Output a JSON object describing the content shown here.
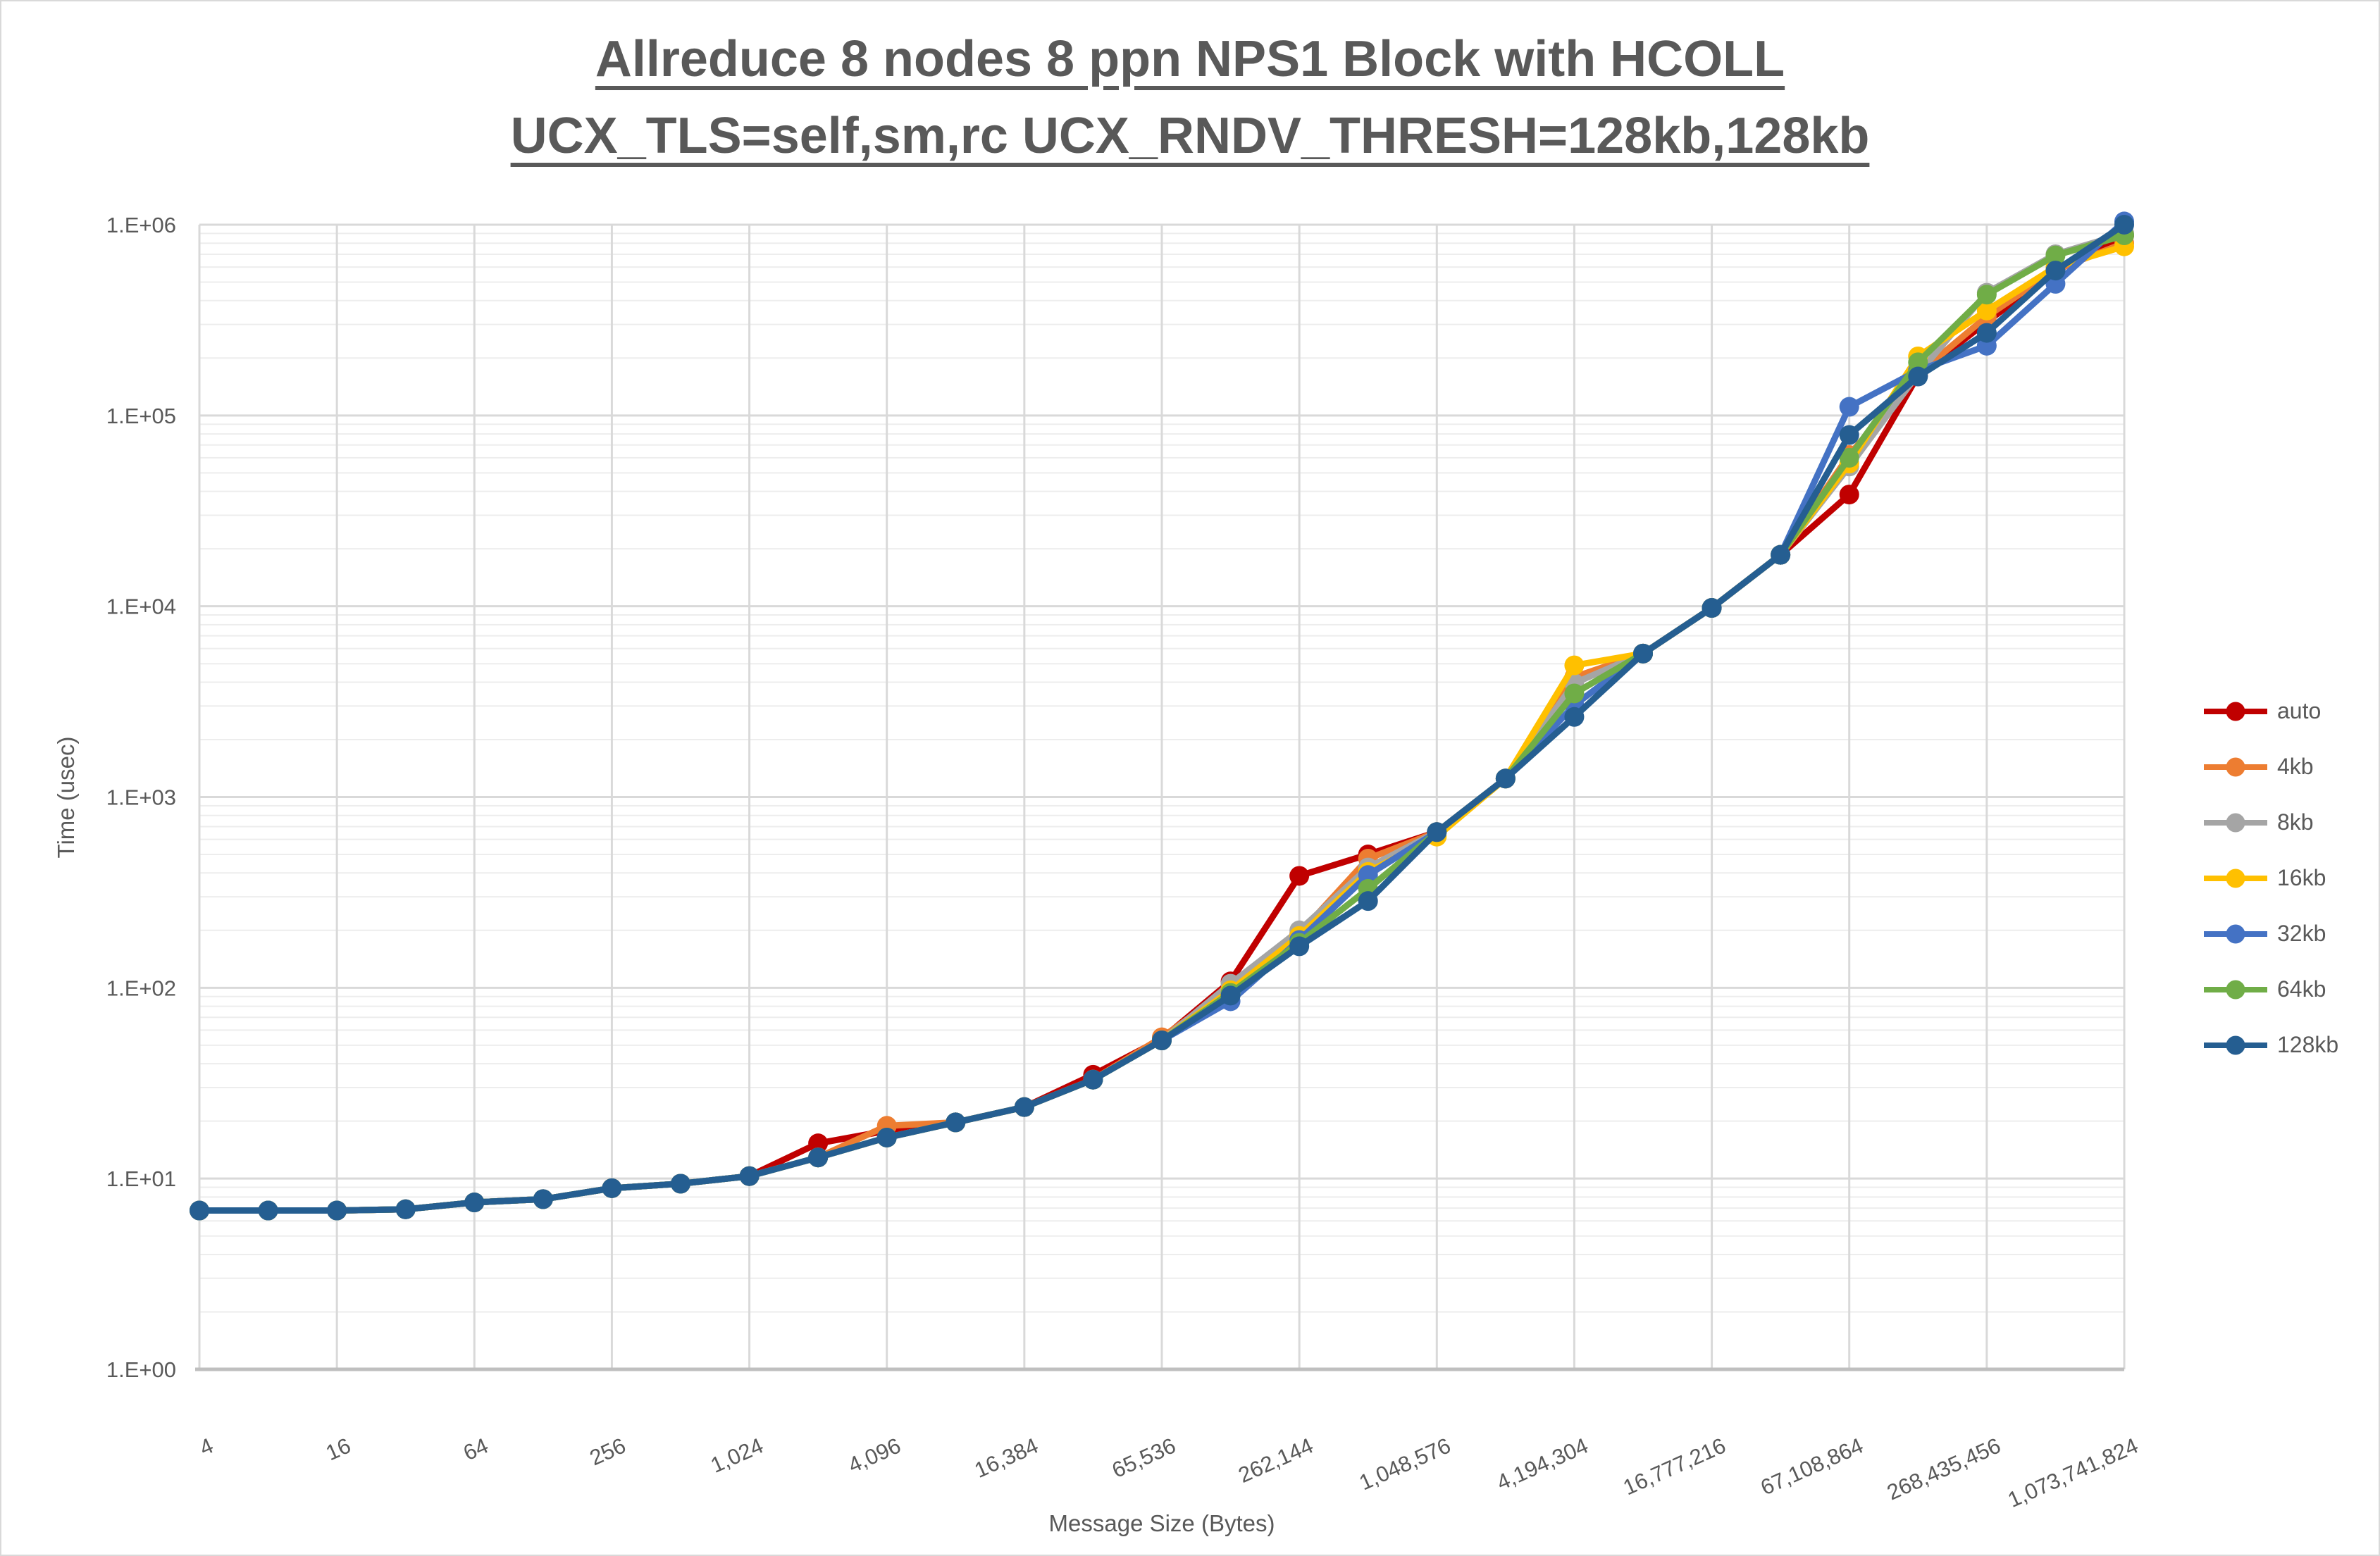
{
  "title": {
    "line1": "Allreduce 8 nodes 8 ppn NPS1 Block with HCOLL",
    "line2": "UCX_TLS=self,sm,rc UCX_RNDV_THRESH=128kb,128kb"
  },
  "axes": {
    "y_label": "Time (usec)",
    "x_label": "Message Size (Bytes)",
    "y_tick_labels": [
      "1.E+00",
      "1.E+01",
      "1.E+02",
      "1.E+03",
      "1.E+04",
      "1.E+05",
      "1.E+06"
    ],
    "x_tick_labels": [
      "4",
      "16",
      "64",
      "256",
      "1,024",
      "4,096",
      "16,384",
      "65,536",
      "262,144",
      "1,048,576",
      "4,194,304",
      "16,777,216",
      "67,108,864",
      "268,435,456",
      "1,073,741,824"
    ]
  },
  "legend_position": "right",
  "chart_data": {
    "type": "line",
    "title": "Allreduce 8 nodes 8 ppn NPS1 Block with HCOLL UCX_TLS=self,sm,rc UCX_RNDV_THRESH=128kb,128kb",
    "xlabel": "Message Size (Bytes)",
    "ylabel": "Time (usec)",
    "x_scale": "log2",
    "y_scale": "log10",
    "xlim": [
      4,
      1073741824
    ],
    "ylim": [
      1,
      1000000
    ],
    "grid": "on",
    "x": [
      4,
      8,
      16,
      32,
      64,
      128,
      256,
      512,
      1024,
      2048,
      4096,
      8192,
      16384,
      32768,
      65536,
      131072,
      262144,
      524288,
      1048576,
      2097152,
      4194304,
      8388608,
      16777216,
      33554432,
      67108864,
      134217728,
      268435456,
      536870912,
      1073741824
    ],
    "series": [
      {
        "name": "auto",
        "color": "#C00000",
        "values": [
          6.8,
          6.8,
          6.8,
          6.9,
          7.5,
          7.8,
          8.9,
          9.4,
          10.3,
          15.3,
          17.8,
          19.7,
          23.7,
          35,
          54,
          108,
          386,
          500,
          655,
          1250,
          4050,
          5650,
          9800,
          18600,
          38500,
          162000,
          310000,
          570000,
          880000
        ]
      },
      {
        "name": "4kb",
        "color": "#ED7D31",
        "values": [
          6.8,
          6.8,
          6.8,
          6.9,
          7.5,
          7.8,
          8.9,
          9.4,
          10.3,
          12.9,
          18.9,
          19.7,
          23.7,
          33,
          55,
          99,
          192,
          475,
          655,
          1250,
          4250,
          5650,
          9800,
          18600,
          62000,
          165000,
          330000,
          580000,
          800000
        ]
      },
      {
        "name": "8kb",
        "color": "#A5A5A5",
        "values": [
          6.8,
          6.8,
          6.8,
          6.9,
          7.5,
          7.8,
          8.9,
          9.4,
          10.3,
          12.9,
          16.4,
          19.7,
          23.7,
          33,
          53,
          105,
          200,
          427,
          655,
          1250,
          3950,
          5650,
          9800,
          18600,
          54000,
          165000,
          440000,
          700000,
          900000
        ]
      },
      {
        "name": "16kb",
        "color": "#FFC000",
        "values": [
          6.8,
          6.8,
          6.8,
          6.9,
          7.5,
          7.8,
          8.9,
          9.4,
          10.3,
          12.9,
          16.4,
          19.7,
          23.7,
          33,
          53,
          97,
          187,
          405,
          620,
          1250,
          4900,
          5650,
          9800,
          18600,
          56000,
          204000,
          355000,
          600000,
          770000
        ]
      },
      {
        "name": "32kb",
        "color": "#4472C4",
        "values": [
          6.8,
          6.8,
          6.8,
          6.9,
          7.5,
          7.8,
          8.9,
          9.4,
          10.3,
          12.9,
          16.4,
          19.7,
          23.7,
          33,
          53,
          85,
          178,
          390,
          655,
          1250,
          3030,
          5650,
          9800,
          18600,
          111000,
          172000,
          232000,
          490000,
          1040000
        ]
      },
      {
        "name": "64kb",
        "color": "#70AD47",
        "values": [
          6.8,
          6.8,
          6.8,
          6.9,
          7.5,
          7.8,
          8.9,
          9.4,
          10.3,
          12.9,
          16.4,
          19.7,
          23.7,
          33,
          53,
          94,
          172,
          330,
          655,
          1250,
          3490,
          5650,
          9800,
          18600,
          60000,
          190000,
          430000,
          690000,
          880000
        ]
      },
      {
        "name": "128kb",
        "color": "#255E91",
        "values": [
          6.8,
          6.8,
          6.8,
          6.9,
          7.5,
          7.8,
          8.9,
          9.4,
          10.3,
          12.9,
          16.4,
          19.7,
          23.7,
          33,
          53,
          91,
          165,
          285,
          655,
          1250,
          2630,
          5650,
          9800,
          18600,
          79000,
          160000,
          271000,
          575000,
          1000000
        ]
      }
    ]
  },
  "style_colors": {
    "title_text": "#595959",
    "tick_text": "#595959",
    "gridline_major": "#D9D9D9",
    "gridline_minor": "#EDEDED",
    "axis_line": "#BFBFBF",
    "canvas_border": "#D9D9D9"
  }
}
